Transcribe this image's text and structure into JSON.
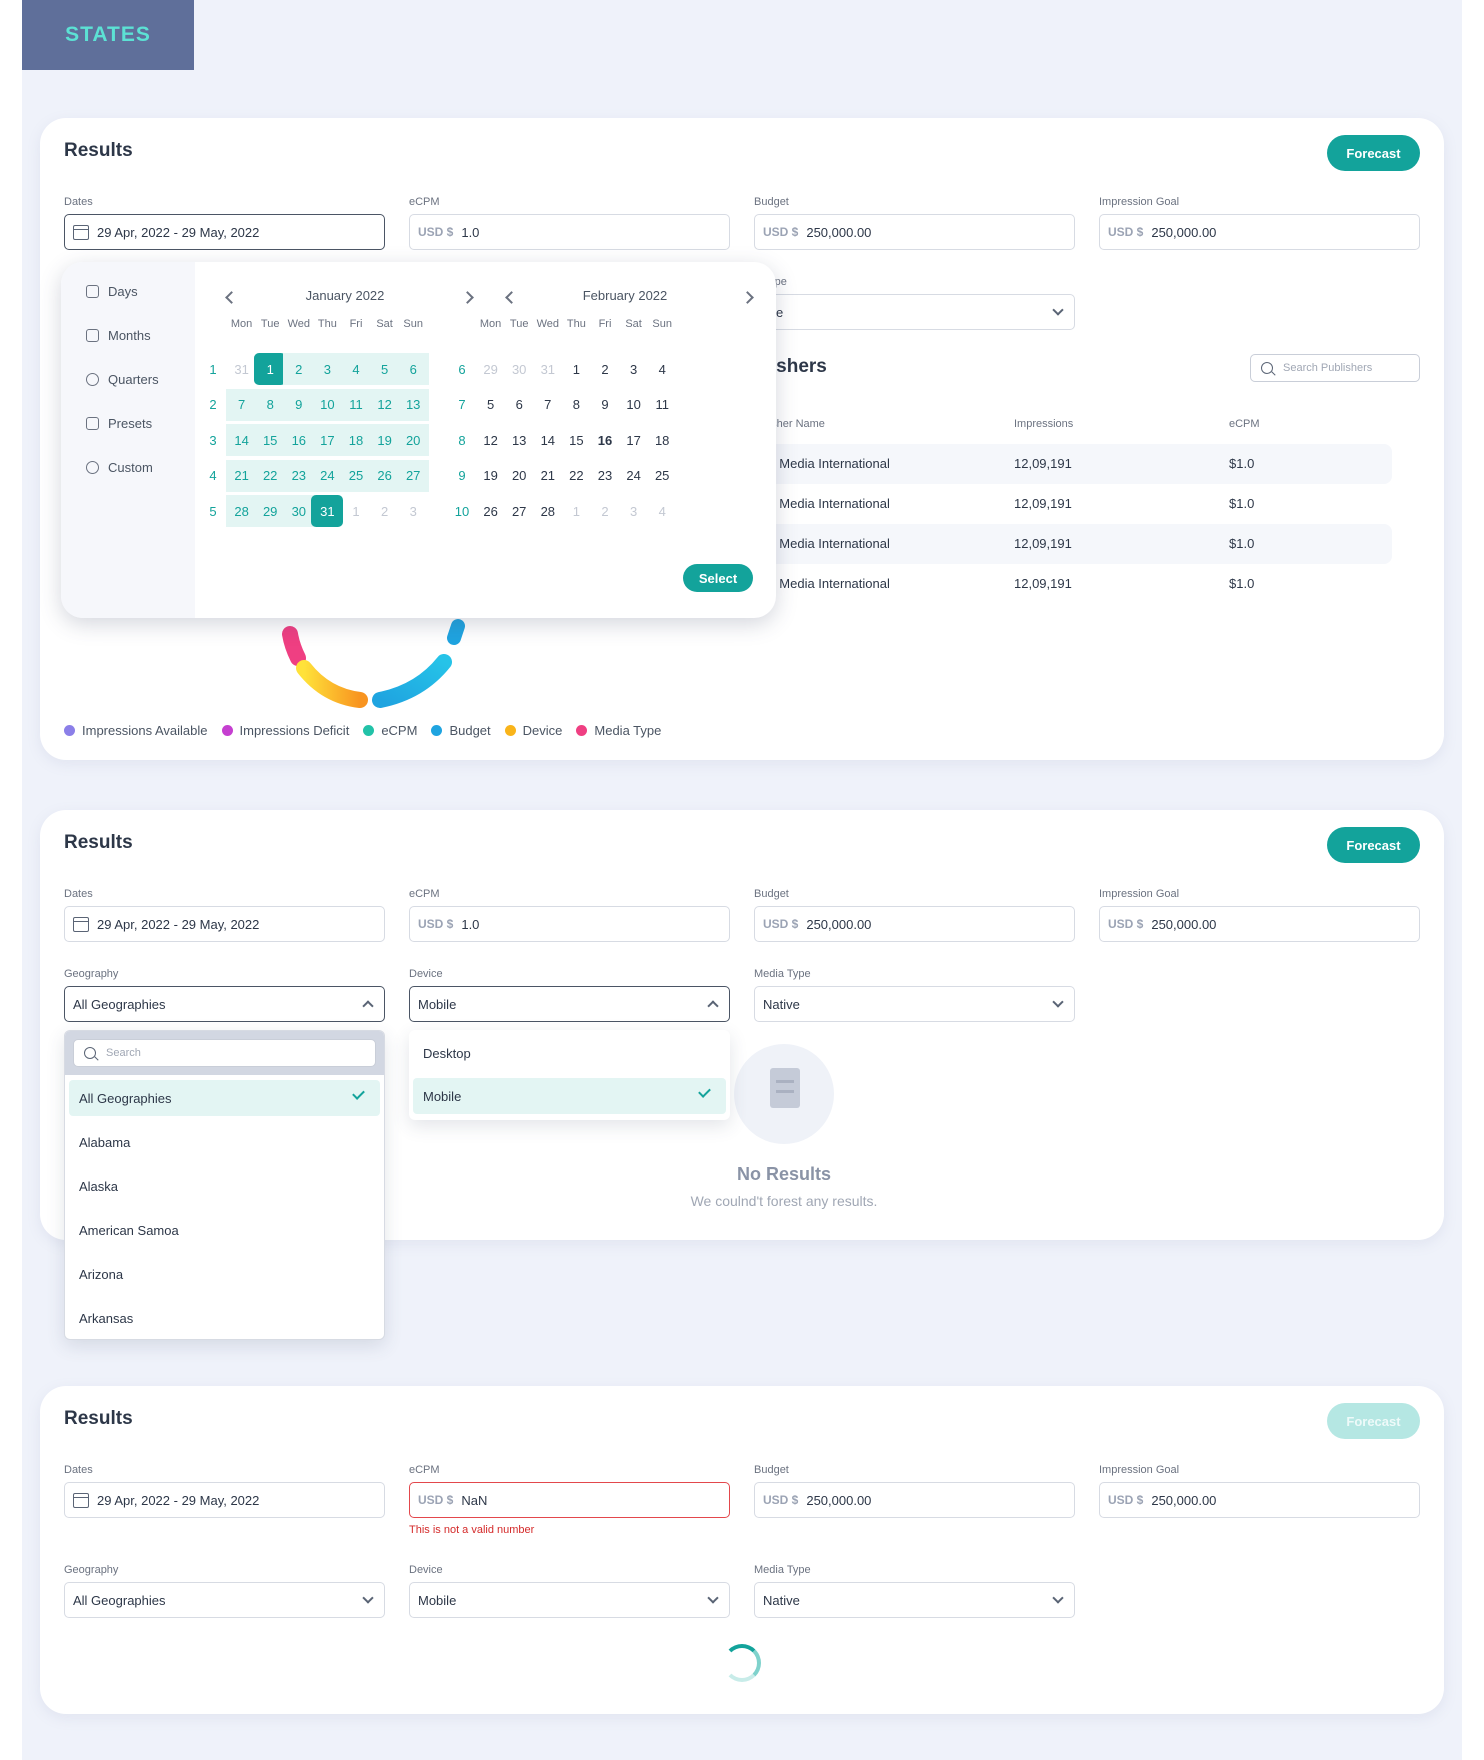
{
  "header": {
    "tag": "STATES"
  },
  "cards": [
    {
      "title": "Results",
      "forecast": "Forecast",
      "fields": {
        "dates_label": "Dates",
        "dates_value": "29 Apr, 2022 - 29 May, 2022",
        "ecpm_label": "eCPM",
        "ecpm_currency": "USD $",
        "ecpm_value": "1.0",
        "budget_label": "Budget",
        "budget_currency": "USD $",
        "budget_value": "250,000.00",
        "goal_label": "Impression Goal",
        "goal_currency": "USD $",
        "goal_value": "250,000.00",
        "media_label": "a Type",
        "media_value": "tive"
      },
      "datepicker": {
        "sidebar": [
          {
            "label": "Days",
            "icon": "calendar-icon"
          },
          {
            "label": "Months",
            "icon": "calendar-icon"
          },
          {
            "label": "Quarters",
            "icon": "pie-icon"
          },
          {
            "label": "Presets",
            "icon": "layers-icon"
          },
          {
            "label": "Custom",
            "icon": "gear-icon"
          }
        ],
        "dow": [
          "Mon",
          "Tue",
          "Wed",
          "Thu",
          "Fri",
          "Sat",
          "Sun"
        ],
        "months": [
          {
            "title": "January 2022",
            "weeks": [
              "1",
              "2",
              "3",
              "4",
              "5"
            ],
            "rows": [
              [
                "31",
                "1",
                "2",
                "3",
                "4",
                "5",
                "6"
              ],
              [
                "7",
                "8",
                "9",
                "10",
                "11",
                "12",
                "13"
              ],
              [
                "14",
                "15",
                "16",
                "17",
                "18",
                "19",
                "20"
              ],
              [
                "21",
                "22",
                "23",
                "24",
                "25",
                "26",
                "27"
              ],
              [
                "28",
                "29",
                "30",
                "31",
                "1",
                "2",
                "3"
              ]
            ]
          },
          {
            "title": "February 2022",
            "weeks": [
              "6",
              "7",
              "8",
              "9",
              "10"
            ],
            "rows": [
              [
                "29",
                "30",
                "31",
                "1",
                "2",
                "3",
                "4"
              ],
              [
                "5",
                "6",
                "7",
                "8",
                "9",
                "10",
                "11"
              ],
              [
                "12",
                "13",
                "14",
                "15",
                "16",
                "17",
                "18"
              ],
              [
                "19",
                "20",
                "21",
                "22",
                "23",
                "24",
                "25"
              ],
              [
                "26",
                "27",
                "28",
                "1",
                "2",
                "3",
                "4"
              ]
            ]
          }
        ],
        "select": "Select"
      },
      "publishers": {
        "title": "blishers",
        "search_placeholder": "Search Publishers",
        "columns": [
          "ublisher Name",
          "Impressions",
          "eCPM"
        ],
        "rows": [
          [
            "iber Media International",
            "12,09,191",
            "$1.0"
          ],
          [
            "iber Media International",
            "12,09,191",
            "$1.0"
          ],
          [
            "iber Media International",
            "12,09,191",
            "$1.0"
          ],
          [
            "iber Media International",
            "12,09,191",
            "$1.0"
          ]
        ]
      },
      "legend": [
        {
          "label": "Impressions Available",
          "color": "#8b7fe8"
        },
        {
          "label": "Impressions Deficit",
          "color": "#c53fd0"
        },
        {
          "label": "eCPM",
          "color": "#22c2a8"
        },
        {
          "label": "Budget",
          "color": "#1fa4e0"
        },
        {
          "label": "Device",
          "color": "#f9b41a"
        },
        {
          "label": "Media Type",
          "color": "#ef3f82"
        }
      ]
    },
    {
      "title": "Results",
      "forecast": "Forecast",
      "fields": {
        "dates_label": "Dates",
        "dates_value": "29 Apr, 2022 - 29 May, 2022",
        "ecpm_label": "eCPM",
        "ecpm_currency": "USD $",
        "ecpm_value": "1.0",
        "budget_label": "Budget",
        "budget_currency": "USD $",
        "budget_value": "250,000.00",
        "goal_label": "Impression Goal",
        "goal_currency": "USD $",
        "goal_value": "250,000.00",
        "geo_label": "Geography",
        "geo_value": "All Geographies",
        "device_label": "Device",
        "device_value": "Mobile",
        "media_label": "Media Type",
        "media_value": "Native"
      },
      "geo_dropdown": {
        "search_placeholder": "Search",
        "options": [
          "All Geographies",
          "Alabama",
          "Alaska",
          "American Samoa",
          "Arizona",
          "Arkansas"
        ]
      },
      "device_dropdown": {
        "options": [
          "Desktop",
          "Mobile"
        ]
      },
      "empty": {
        "title": "No Results",
        "message": "We coulnd't forest any results."
      }
    },
    {
      "title": "Results",
      "forecast": "Forecast",
      "fields": {
        "dates_label": "Dates",
        "dates_value": "29 Apr, 2022 - 29 May, 2022",
        "ecpm_label": "eCPM",
        "ecpm_currency": "USD $",
        "ecpm_value": "NaN",
        "ecpm_error": "This is not a valid number",
        "budget_label": "Budget",
        "budget_currency": "USD $",
        "budget_value": "250,000.00",
        "goal_label": "Impression Goal",
        "goal_currency": "USD $",
        "goal_value": "250,000.00",
        "geo_label": "Geography",
        "geo_value": "All Geographies",
        "device_label": "Device",
        "device_value": "Mobile",
        "media_label": "Media Type",
        "media_value": "Native"
      }
    }
  ]
}
